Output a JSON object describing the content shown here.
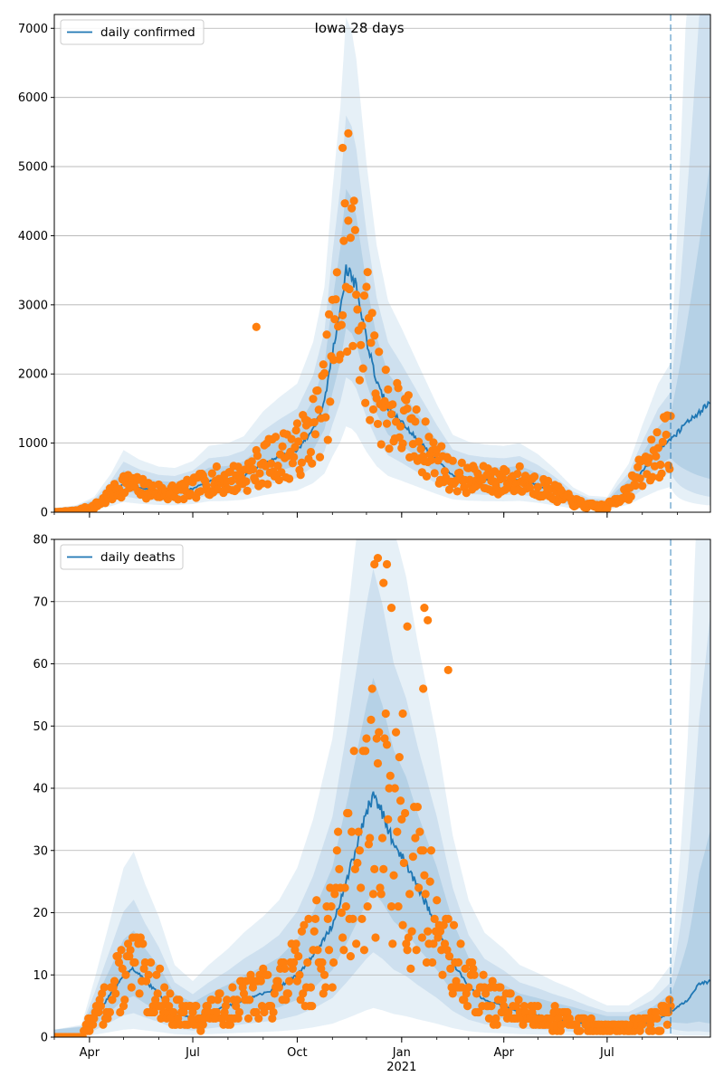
{
  "figure": {
    "title": "Iowa 28 days"
  },
  "colors": {
    "model": "#1f77b4",
    "observed": "#ff7f0e",
    "band": "#1f77b4",
    "grid": "#b0b0b0",
    "cutoff": "#1f77b4"
  },
  "chart_data": [
    {
      "type": "line",
      "title": "",
      "legend": {
        "label": "daily confirmed",
        "placement": "top-left"
      },
      "x_axis": {
        "start": "2020-03-01",
        "end": "2021-09-30",
        "ticks": [
          {
            "date": "2020-04-01",
            "label": "Apr"
          },
          {
            "date": "2020-07-01",
            "label": "Jul"
          },
          {
            "date": "2020-10-01",
            "label": "Oct"
          },
          {
            "date": "2021-01-01",
            "label": "Jan",
            "sublabel": "2021"
          },
          {
            "date": "2021-04-01",
            "label": "Apr"
          },
          {
            "date": "2021-07-01",
            "label": "Jul"
          }
        ]
      },
      "forecast_start": "2021-08-26",
      "ylim": [
        0,
        7200
      ],
      "yticks": [
        0,
        1000,
        2000,
        3000,
        4000,
        5000,
        6000,
        7000
      ],
      "grid": "horizontal",
      "model_line": [
        [
          "2020-03-01",
          0
        ],
        [
          "2020-03-20",
          20
        ],
        [
          "2020-04-05",
          80
        ],
        [
          "2020-04-20",
          250
        ],
        [
          "2020-05-01",
          420
        ],
        [
          "2020-05-15",
          350
        ],
        [
          "2020-06-01",
          300
        ],
        [
          "2020-06-15",
          290
        ],
        [
          "2020-07-01",
          340
        ],
        [
          "2020-07-15",
          450
        ],
        [
          "2020-08-01",
          470
        ],
        [
          "2020-08-15",
          520
        ],
        [
          "2020-09-01",
          700
        ],
        [
          "2020-09-15",
          800
        ],
        [
          "2020-10-01",
          900
        ],
        [
          "2020-10-15",
          1200
        ],
        [
          "2020-10-25",
          1600
        ],
        [
          "2020-11-01",
          2300
        ],
        [
          "2020-11-08",
          2900
        ],
        [
          "2020-11-13",
          3550
        ],
        [
          "2020-11-18",
          3450
        ],
        [
          "2020-11-22",
          3250
        ],
        [
          "2020-12-01",
          2500
        ],
        [
          "2020-12-10",
          1900
        ],
        [
          "2020-12-20",
          1500
        ],
        [
          "2021-01-01",
          1300
        ],
        [
          "2021-01-15",
          1050
        ],
        [
          "2021-02-01",
          750
        ],
        [
          "2021-02-15",
          530
        ],
        [
          "2021-03-01",
          480
        ],
        [
          "2021-03-15",
          460
        ],
        [
          "2021-04-01",
          450
        ],
        [
          "2021-04-15",
          470
        ],
        [
          "2021-05-01",
          390
        ],
        [
          "2021-05-15",
          290
        ],
        [
          "2021-06-01",
          150
        ],
        [
          "2021-06-15",
          90
        ],
        [
          "2021-07-01",
          80
        ],
        [
          "2021-07-10",
          200
        ],
        [
          "2021-07-20",
          320
        ],
        [
          "2021-08-01",
          600
        ],
        [
          "2021-08-15",
          900
        ],
        [
          "2021-08-26",
          1050
        ],
        [
          "2021-09-10",
          1300
        ],
        [
          "2021-09-30",
          1580
        ]
      ],
      "band_inner": {
        "lower_ratio": 0.75,
        "upper_ratio": 1.3
      },
      "band_mid": {
        "lower_ratio": 0.55,
        "upper_ratio": 1.6
      },
      "band_outer": {
        "lower_ratio": 0.35,
        "upper_ratio": 2.0
      },
      "observed_generation": {
        "seed": 7,
        "start": "2020-03-01",
        "end": "2021-08-26",
        "noise": 0.45,
        "spikes": [
          [
            "2020-08-26",
            2680
          ],
          [
            "2020-11-15",
            5480
          ],
          [
            "2020-11-10",
            5270
          ]
        ]
      }
    },
    {
      "type": "line",
      "title": "",
      "legend": {
        "label": "daily deaths",
        "placement": "top-left"
      },
      "x_axis": {
        "start": "2020-03-01",
        "end": "2021-09-30",
        "ticks": [
          {
            "date": "2020-04-01",
            "label": "Apr"
          },
          {
            "date": "2020-07-01",
            "label": "Jul"
          },
          {
            "date": "2020-10-01",
            "label": "Oct"
          },
          {
            "date": "2021-01-01",
            "label": "Jan",
            "sublabel": "2021"
          },
          {
            "date": "2021-04-01",
            "label": "Apr"
          },
          {
            "date": "2021-07-01",
            "label": "Jul"
          }
        ]
      },
      "forecast_start": "2021-08-26",
      "ylim": [
        0,
        80
      ],
      "yticks": [
        0,
        10,
        20,
        30,
        40,
        50,
        60,
        70,
        80
      ],
      "grid": "horizontal",
      "model_line": [
        [
          "2020-03-01",
          0
        ],
        [
          "2020-03-25",
          0.3
        ],
        [
          "2020-04-05",
          3
        ],
        [
          "2020-04-20",
          7
        ],
        [
          "2020-05-01",
          10
        ],
        [
          "2020-05-10",
          11
        ],
        [
          "2020-05-20",
          9
        ],
        [
          "2020-06-01",
          7
        ],
        [
          "2020-06-15",
          4
        ],
        [
          "2020-07-01",
          3
        ],
        [
          "2020-07-15",
          4
        ],
        [
          "2020-08-01",
          5
        ],
        [
          "2020-08-15",
          6
        ],
        [
          "2020-09-01",
          7
        ],
        [
          "2020-09-15",
          8
        ],
        [
          "2020-10-01",
          10
        ],
        [
          "2020-10-15",
          13
        ],
        [
          "2020-11-01",
          18
        ],
        [
          "2020-11-15",
          26
        ],
        [
          "2020-12-01",
          36
        ],
        [
          "2020-12-07",
          39
        ],
        [
          "2020-12-15",
          36
        ],
        [
          "2020-12-25",
          31
        ],
        [
          "2021-01-05",
          28
        ],
        [
          "2021-01-15",
          24
        ],
        [
          "2021-02-01",
          18
        ],
        [
          "2021-02-15",
          12
        ],
        [
          "2021-03-01",
          8
        ],
        [
          "2021-03-15",
          6
        ],
        [
          "2021-04-01",
          5
        ],
        [
          "2021-04-15",
          4
        ],
        [
          "2021-05-01",
          3.5
        ],
        [
          "2021-05-15",
          3
        ],
        [
          "2021-06-01",
          2.5
        ],
        [
          "2021-06-15",
          2
        ],
        [
          "2021-07-01",
          1.5
        ],
        [
          "2021-07-20",
          1.5
        ],
        [
          "2021-08-10",
          2.5
        ],
        [
          "2021-08-26",
          4
        ],
        [
          "2021-09-10",
          6
        ],
        [
          "2021-09-20",
          8.5
        ],
        [
          "2021-09-30",
          9
        ]
      ],
      "band_inner": {
        "lower_ratio": 0.6,
        "upper_ratio": 1.45
      },
      "band_mid": {
        "lower_ratio": 0.35,
        "upper_ratio": 1.9
      },
      "band_outer": {
        "lower_ratio": 0.12,
        "upper_ratio": 2.6
      },
      "observed_generation": {
        "seed": 13,
        "start": "2020-03-01",
        "end": "2021-08-26",
        "noise": 0.6,
        "spikes": [
          [
            "2020-12-11",
            77
          ],
          [
            "2020-12-08",
            76
          ],
          [
            "2020-12-19",
            76
          ],
          [
            "2020-12-16",
            73
          ],
          [
            "2020-12-23",
            69
          ],
          [
            "2021-01-21",
            69
          ],
          [
            "2021-01-06",
            66
          ],
          [
            "2021-01-24",
            67
          ],
          [
            "2021-02-11",
            59
          ],
          [
            "2021-01-02",
            52
          ],
          [
            "2021-01-20",
            56
          ]
        ]
      }
    }
  ]
}
